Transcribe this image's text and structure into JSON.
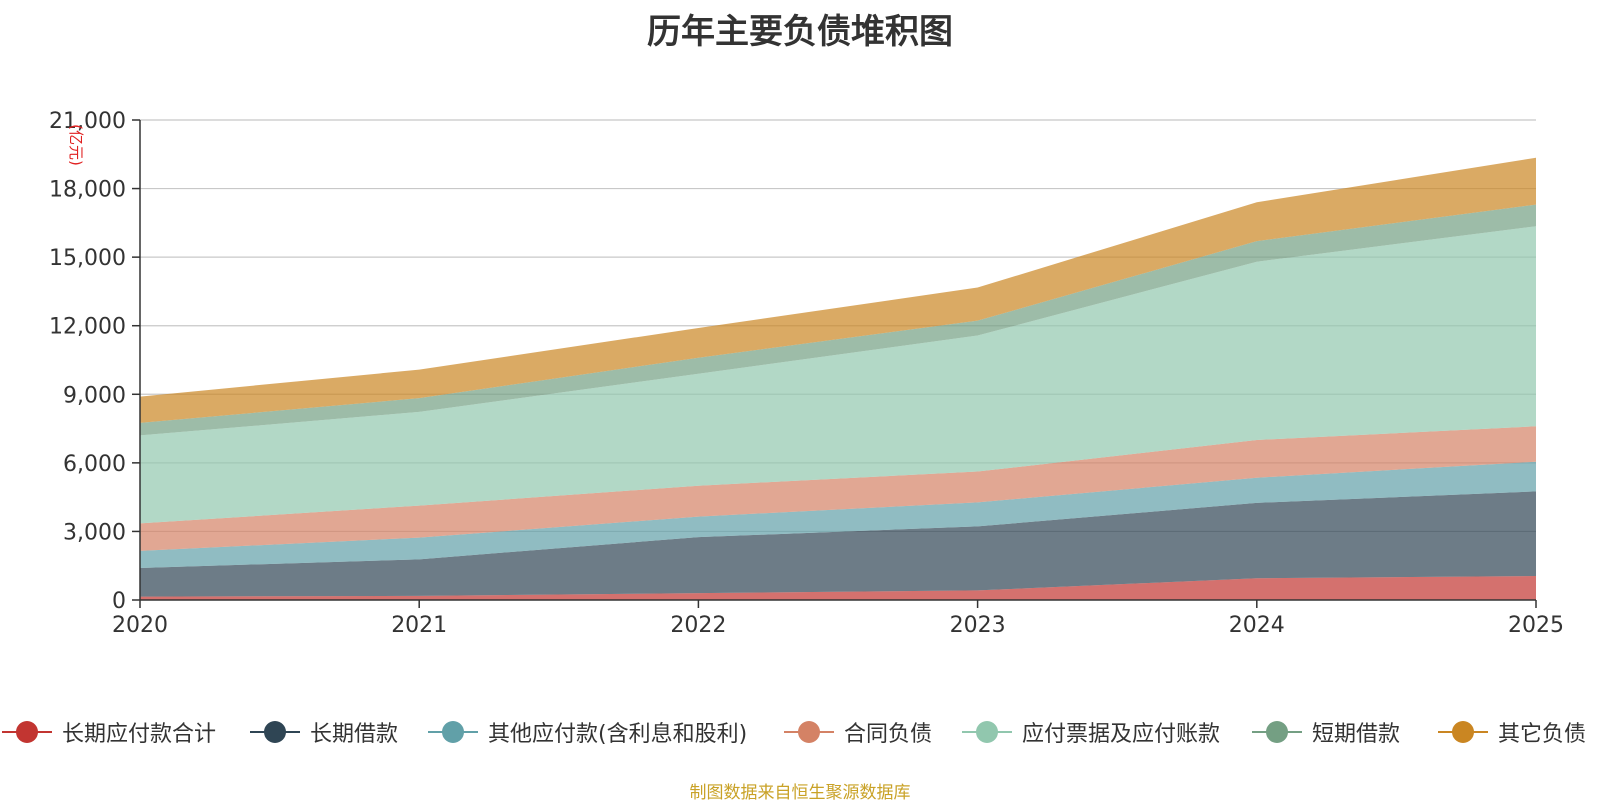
{
  "chart_data": {
    "type": "area",
    "stacked": true,
    "title": "历年主要负债堆积图",
    "ylabel": "(亿元)",
    "xlabel": "",
    "categories": [
      "2020",
      "2021",
      "2022",
      "2023",
      "2024",
      "2025"
    ],
    "ylim": [
      0,
      21000
    ],
    "yticks": [
      0,
      3000,
      6000,
      9000,
      12000,
      15000,
      18000,
      21000
    ],
    "ytick_labels": [
      "0",
      "3,000",
      "6,000",
      "9,000",
      "12,000",
      "15,000",
      "18,000",
      "21,000"
    ],
    "grid": true,
    "legend_position": "bottom",
    "series": [
      {
        "name": "长期应付款合计",
        "color": "#c23531",
        "values": [
          150,
          180,
          300,
          420,
          950,
          1050
        ]
      },
      {
        "name": "长期借款",
        "color": "#2f4554",
        "values": [
          1250,
          1600,
          2450,
          2800,
          3300,
          3700
        ]
      },
      {
        "name": "其他应付款(含利息和股利)",
        "color": "#61a0a8",
        "values": [
          750,
          950,
          900,
          1050,
          1100,
          1300
        ]
      },
      {
        "name": "合同负债",
        "color": "#d48265",
        "values": [
          1200,
          1400,
          1350,
          1350,
          1650,
          1550
        ]
      },
      {
        "name": "应付票据及应付账款",
        "color": "#91c7ae",
        "values": [
          3850,
          4100,
          4900,
          5950,
          7800,
          8750
        ]
      },
      {
        "name": "短期借款",
        "color": "#749f83",
        "values": [
          550,
          600,
          700,
          650,
          900,
          950
        ]
      },
      {
        "name": "其它负债",
        "color": "#ca8622",
        "values": [
          1150,
          1250,
          1300,
          1450,
          1700,
          2050
        ]
      }
    ]
  },
  "source_note": "制图数据来自恒生聚源数据库"
}
